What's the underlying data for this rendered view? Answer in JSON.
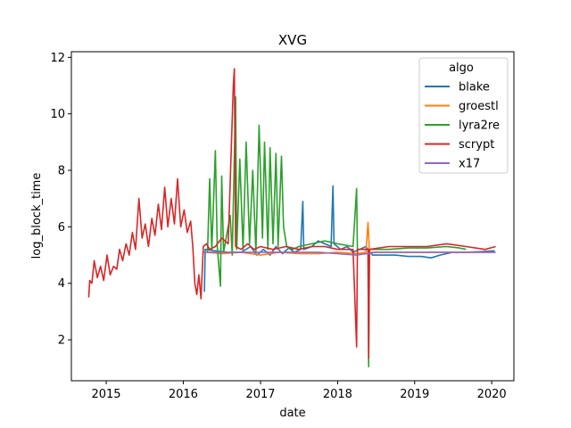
{
  "chart_data": {
    "type": "line",
    "title": "XVG",
    "xlabel": "date",
    "ylabel": "log_block_time",
    "x_ticks": [
      "2015",
      "2016",
      "2017",
      "2018",
      "2019",
      "2020"
    ],
    "y_ticks": [
      "2",
      "4",
      "6",
      "8",
      "10",
      "12"
    ],
    "xlim": [
      "2014-07-20",
      "2020-04-15"
    ],
    "ylim": [
      0.55,
      12.2
    ],
    "grid": false,
    "legend": {
      "title": "algo",
      "placement": "top-right"
    },
    "series": [
      {
        "name": "blake",
        "color": "#1f77b4",
        "points": [
          [
            "2016-04-10",
            3.7
          ],
          [
            "2016-04-14",
            5.2
          ],
          [
            "2016-06-01",
            5.15
          ],
          [
            "2016-08-01",
            5.1
          ],
          [
            "2016-10-01",
            5.1
          ],
          [
            "2016-11-15",
            5.3
          ],
          [
            "2016-12-15",
            5.0
          ],
          [
            "2017-01-15",
            5.2
          ],
          [
            "2017-02-15",
            5.0
          ],
          [
            "2017-03-15",
            5.3
          ],
          [
            "2017-04-15",
            5.05
          ],
          [
            "2017-05-15",
            5.25
          ],
          [
            "2017-06-10",
            5.1
          ],
          [
            "2017-07-10",
            5.2
          ],
          [
            "2017-07-20",
            6.9
          ],
          [
            "2017-07-25",
            5.2
          ],
          [
            "2017-09-01",
            5.3
          ],
          [
            "2017-10-01",
            5.5
          ],
          [
            "2017-11-01",
            5.4
          ],
          [
            "2017-12-01",
            5.3
          ],
          [
            "2017-12-10",
            7.45
          ],
          [
            "2017-12-15",
            5.4
          ],
          [
            "2018-01-15",
            5.2
          ],
          [
            "2018-02-15",
            5.3
          ],
          [
            "2018-03-15",
            5.1
          ],
          [
            "2018-04-15",
            5.2
          ],
          [
            "2018-05-15",
            5.3
          ],
          [
            "2018-06-15",
            5.0
          ],
          [
            "2018-08-01",
            5.0
          ],
          [
            "2018-10-01",
            5.0
          ],
          [
            "2018-12-01",
            4.95
          ],
          [
            "2019-02-01",
            4.95
          ],
          [
            "2019-03-20",
            4.9
          ],
          [
            "2019-05-01",
            5.0
          ],
          [
            "2019-07-01",
            5.1
          ],
          [
            "2019-09-01",
            5.1
          ],
          [
            "2019-11-01",
            5.12
          ],
          [
            "2020-01-15",
            5.15
          ]
        ]
      },
      {
        "name": "groestl",
        "color": "#ff7f0e",
        "points": [
          [
            "2016-04-20",
            5.1
          ],
          [
            "2016-07-01",
            5.05
          ],
          [
            "2016-10-01",
            5.1
          ],
          [
            "2017-01-01",
            5.0
          ],
          [
            "2017-04-01",
            5.1
          ],
          [
            "2017-07-01",
            5.05
          ],
          [
            "2017-10-01",
            5.05
          ],
          [
            "2018-01-01",
            5.1
          ],
          [
            "2018-04-01",
            5.05
          ],
          [
            "2018-05-15",
            5.1
          ],
          [
            "2018-05-25",
            6.15
          ],
          [
            "2018-06-01",
            5.1
          ],
          [
            "2018-09-01",
            5.1
          ],
          [
            "2018-12-01",
            5.1
          ],
          [
            "2019-03-01",
            5.1
          ],
          [
            "2019-06-01",
            5.1
          ],
          [
            "2019-09-01",
            5.1
          ],
          [
            "2020-01-15",
            5.1
          ]
        ]
      },
      {
        "name": "lyra2re",
        "color": "#2ca02c",
        "points": [
          [
            "2016-04-25",
            5.1
          ],
          [
            "2016-05-05",
            7.7
          ],
          [
            "2016-05-15",
            5.2
          ],
          [
            "2016-06-01",
            8.7
          ],
          [
            "2016-06-10",
            5.3
          ],
          [
            "2016-06-25",
            3.9
          ],
          [
            "2016-07-01",
            7.8
          ],
          [
            "2016-07-10",
            5.1
          ],
          [
            "2016-08-10",
            6.4
          ],
          [
            "2016-08-20",
            5.0
          ],
          [
            "2016-09-05",
            10.6
          ],
          [
            "2016-09-10",
            5.2
          ],
          [
            "2016-09-25",
            8.4
          ],
          [
            "2016-10-10",
            5.2
          ],
          [
            "2016-10-25",
            9.0
          ],
          [
            "2016-11-10",
            5.4
          ],
          [
            "2016-11-25",
            8.0
          ],
          [
            "2016-12-10",
            5.1
          ],
          [
            "2016-12-25",
            9.6
          ],
          [
            "2017-01-10",
            5.6
          ],
          [
            "2017-01-20",
            9.0
          ],
          [
            "2017-02-05",
            5.2
          ],
          [
            "2017-02-15",
            8.8
          ],
          [
            "2017-03-01",
            5.4
          ],
          [
            "2017-03-15",
            8.6
          ],
          [
            "2017-03-25",
            5.3
          ],
          [
            "2017-04-10",
            8.5
          ],
          [
            "2017-04-20",
            6.0
          ],
          [
            "2017-05-05",
            5.3
          ],
          [
            "2017-06-01",
            5.2
          ],
          [
            "2017-07-01",
            5.3
          ],
          [
            "2017-09-01",
            5.4
          ],
          [
            "2017-11-01",
            5.5
          ],
          [
            "2018-01-01",
            5.4
          ],
          [
            "2018-03-15",
            5.3
          ],
          [
            "2018-04-01",
            7.35
          ],
          [
            "2018-04-05",
            5.2
          ],
          [
            "2018-05-25",
            5.2
          ],
          [
            "2018-05-28",
            1.05
          ],
          [
            "2018-06-01",
            5.2
          ],
          [
            "2018-09-01",
            5.2
          ],
          [
            "2018-12-01",
            5.25
          ],
          [
            "2019-03-01",
            5.25
          ],
          [
            "2019-06-01",
            5.3
          ],
          [
            "2019-08-01",
            5.25
          ],
          [
            "2019-09-01",
            5.2
          ]
        ]
      },
      {
        "name": "scrypt",
        "color": "#d62728",
        "points": [
          [
            "2014-10-10",
            3.5
          ],
          [
            "2014-10-15",
            4.1
          ],
          [
            "2014-10-25",
            4.0
          ],
          [
            "2014-11-05",
            4.8
          ],
          [
            "2014-11-20",
            4.2
          ],
          [
            "2014-12-05",
            4.6
          ],
          [
            "2014-12-20",
            4.1
          ],
          [
            "2015-01-05",
            5.0
          ],
          [
            "2015-01-20",
            4.3
          ],
          [
            "2015-02-05",
            4.6
          ],
          [
            "2015-02-20",
            4.5
          ],
          [
            "2015-03-05",
            5.2
          ],
          [
            "2015-03-20",
            4.8
          ],
          [
            "2015-04-05",
            5.4
          ],
          [
            "2015-04-20",
            5.0
          ],
          [
            "2015-05-05",
            5.8
          ],
          [
            "2015-05-20",
            5.2
          ],
          [
            "2015-06-05",
            7.0
          ],
          [
            "2015-06-20",
            5.6
          ],
          [
            "2015-07-05",
            6.1
          ],
          [
            "2015-07-20",
            5.3
          ],
          [
            "2015-08-05",
            6.3
          ],
          [
            "2015-08-20",
            5.7
          ],
          [
            "2015-09-05",
            6.8
          ],
          [
            "2015-09-20",
            5.9
          ],
          [
            "2015-10-05",
            7.4
          ],
          [
            "2015-10-20",
            6.0
          ],
          [
            "2015-11-05",
            7.0
          ],
          [
            "2015-11-20",
            6.1
          ],
          [
            "2015-12-05",
            7.7
          ],
          [
            "2015-12-20",
            6.0
          ],
          [
            "2016-01-05",
            6.6
          ],
          [
            "2016-01-20",
            5.8
          ],
          [
            "2016-02-05",
            6.2
          ],
          [
            "2016-02-15",
            5.3
          ],
          [
            "2016-02-25",
            4.0
          ],
          [
            "2016-03-05",
            3.6
          ],
          [
            "2016-03-15",
            4.3
          ],
          [
            "2016-03-25",
            3.45
          ],
          [
            "2016-04-05",
            5.3
          ],
          [
            "2016-04-20",
            5.4
          ],
          [
            "2016-05-05",
            5.2
          ],
          [
            "2016-06-01",
            5.3
          ],
          [
            "2016-07-01",
            5.6
          ],
          [
            "2016-08-01",
            5.4
          ],
          [
            "2016-08-25",
            11.0
          ],
          [
            "2016-08-30",
            11.6
          ],
          [
            "2016-09-05",
            5.3
          ],
          [
            "2016-10-01",
            5.2
          ],
          [
            "2016-11-01",
            5.4
          ],
          [
            "2016-12-01",
            5.2
          ],
          [
            "2017-01-01",
            5.3
          ],
          [
            "2017-03-01",
            5.2
          ],
          [
            "2017-05-01",
            5.3
          ],
          [
            "2017-07-01",
            5.2
          ],
          [
            "2017-09-01",
            5.3
          ],
          [
            "2017-11-01",
            5.3
          ],
          [
            "2018-01-01",
            5.2
          ],
          [
            "2018-03-15",
            5.2
          ],
          [
            "2018-04-01",
            1.75
          ],
          [
            "2018-04-05",
            5.2
          ],
          [
            "2018-05-25",
            5.2
          ],
          [
            "2018-05-28",
            1.35
          ],
          [
            "2018-06-01",
            5.2
          ],
          [
            "2018-09-01",
            5.3
          ],
          [
            "2018-12-01",
            5.3
          ],
          [
            "2019-03-01",
            5.3
          ],
          [
            "2019-06-01",
            5.4
          ],
          [
            "2019-09-01",
            5.3
          ],
          [
            "2019-12-01",
            5.2
          ],
          [
            "2020-01-20",
            5.3
          ]
        ]
      },
      {
        "name": "x17",
        "color": "#9467bd",
        "points": [
          [
            "2016-04-05",
            5.1
          ],
          [
            "2016-07-01",
            5.1
          ],
          [
            "2016-10-01",
            5.1
          ],
          [
            "2017-01-01",
            5.1
          ],
          [
            "2017-04-01",
            5.1
          ],
          [
            "2017-07-01",
            5.1
          ],
          [
            "2017-10-01",
            5.1
          ],
          [
            "2018-01-01",
            5.05
          ],
          [
            "2018-04-01",
            5.0
          ],
          [
            "2018-07-01",
            5.1
          ],
          [
            "2018-10-01",
            5.1
          ],
          [
            "2019-01-01",
            5.1
          ],
          [
            "2019-04-01",
            5.1
          ],
          [
            "2019-07-01",
            5.1
          ],
          [
            "2019-10-01",
            5.1
          ],
          [
            "2020-01-20",
            5.1
          ]
        ]
      }
    ]
  }
}
